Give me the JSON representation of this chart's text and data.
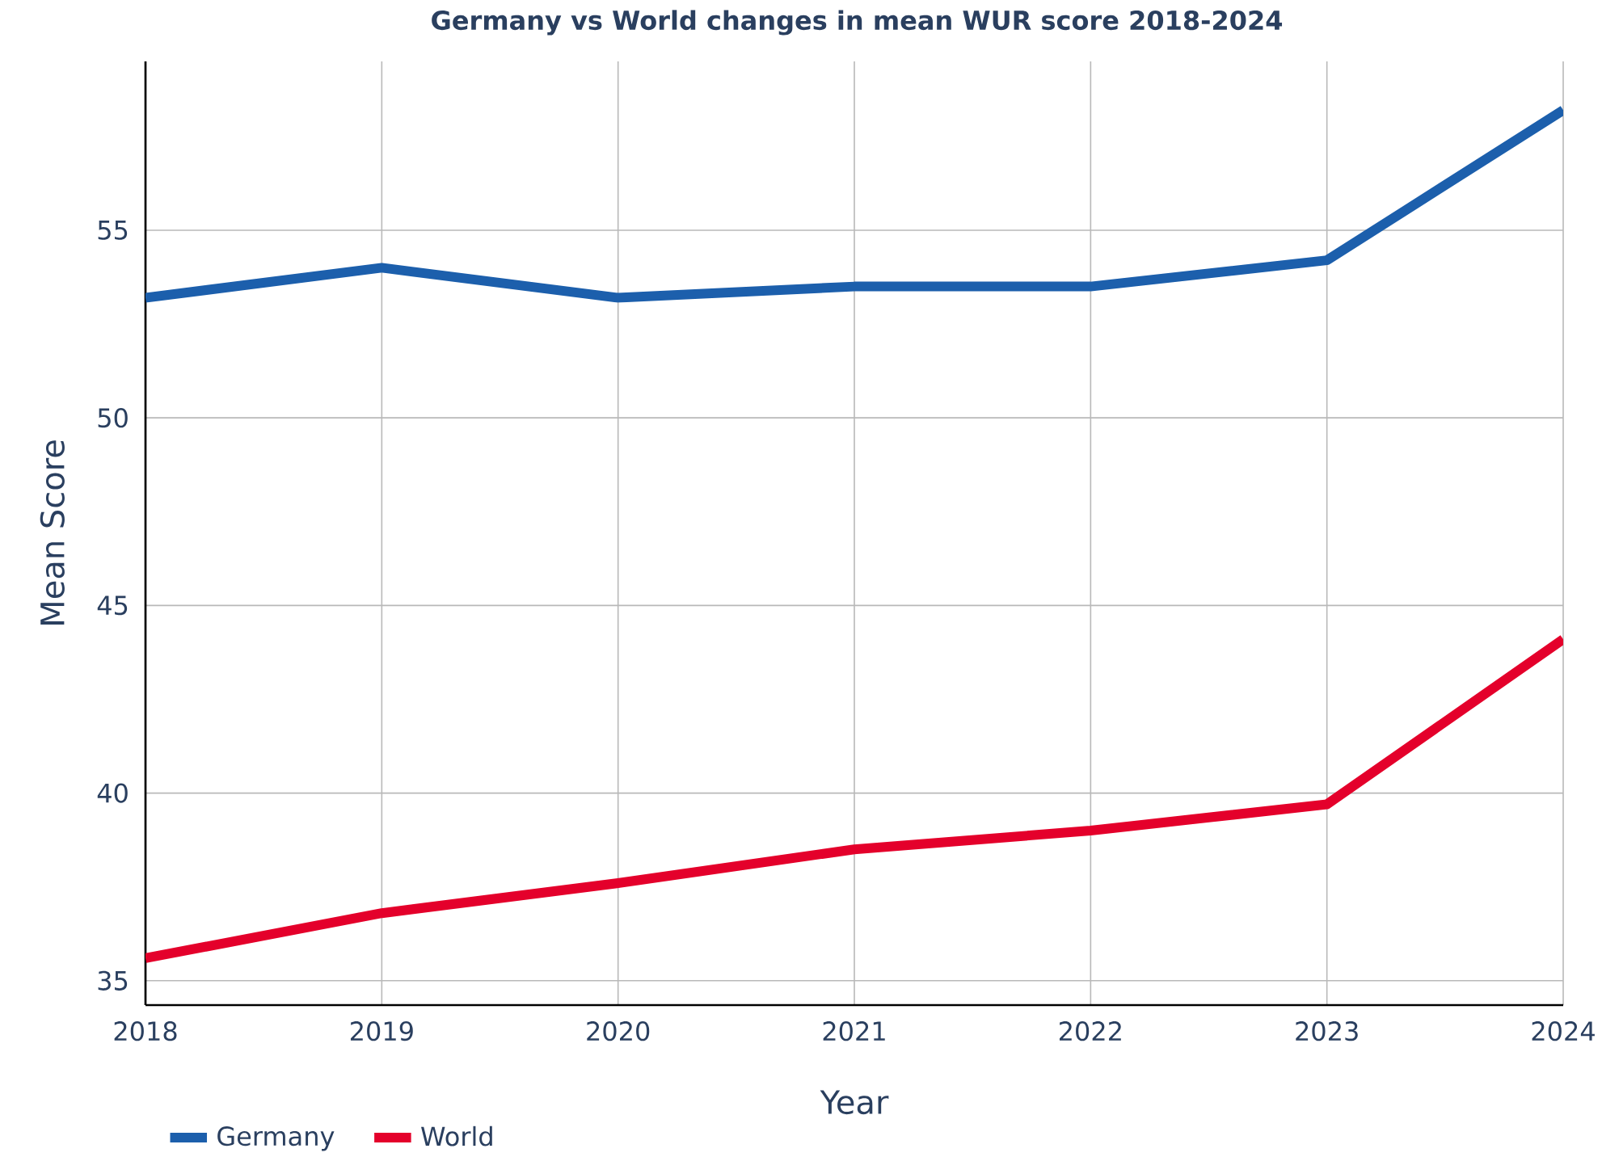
{
  "chart_data": {
    "type": "line",
    "title": "Germany vs World changes in mean WUR score 2018-2024",
    "xlabel": "Year",
    "ylabel": "Mean Score",
    "x": [
      2018,
      2019,
      2020,
      2021,
      2022,
      2023,
      2024
    ],
    "series": [
      {
        "name": "Germany",
        "color": "#1c5fac",
        "values": [
          53.2,
          54.0,
          53.2,
          53.5,
          53.5,
          54.2,
          58.2
        ]
      },
      {
        "name": "World",
        "color": "#e4002b",
        "values": [
          35.6,
          36.8,
          37.6,
          38.5,
          39.0,
          39.7,
          44.1
        ]
      }
    ],
    "xlim": [
      2018,
      2024
    ],
    "xticks": [
      2018,
      2019,
      2020,
      2021,
      2022,
      2023,
      2024
    ],
    "ylim": [
      34.35,
      59.5
    ],
    "yticks": [
      35,
      40,
      45,
      50,
      55
    ],
    "grid": true,
    "legend": "bottom",
    "marker": "none",
    "line_style": "solid"
  }
}
